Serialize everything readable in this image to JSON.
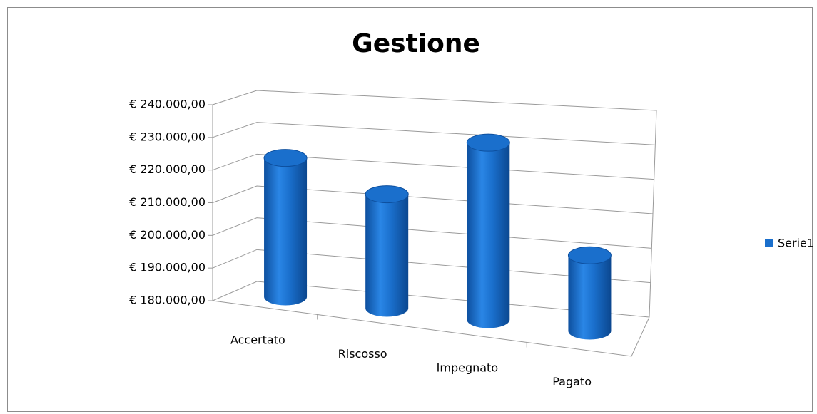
{
  "chart_data": {
    "type": "bar3d",
    "title": "Gestione",
    "categories": [
      "Accertato",
      "Riscosso",
      "Impegnato",
      "Pagato"
    ],
    "series": [
      {
        "name": "Serie1",
        "color": "#1a6fcc",
        "values": [
          222500,
          214000,
          231500,
          201500
        ]
      }
    ],
    "ylim": [
      180000,
      240000
    ],
    "yticks": [
      {
        "value": 180000,
        "label": "€ 180.000,00"
      },
      {
        "value": 190000,
        "label": "€ 190.000,00"
      },
      {
        "value": 200000,
        "label": "€ 200.000,00"
      },
      {
        "value": 210000,
        "label": "€ 210.000,00"
      },
      {
        "value": 220000,
        "label": "€ 220.000,00"
      },
      {
        "value": 230000,
        "label": "€ 230.000,00"
      },
      {
        "value": 240000,
        "label": "€ 240.000,00"
      }
    ],
    "grid": true,
    "legend": "right"
  }
}
